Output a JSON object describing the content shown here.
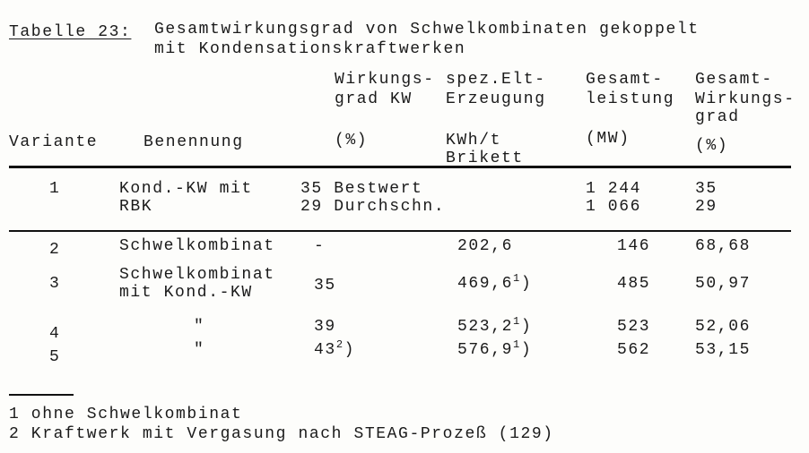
{
  "title": {
    "label": "Tabelle 23:",
    "line1": "Gesamtwirkungsgrad von Schwelkombinaten gekoppelt",
    "line2": "mit Kondensationskraftwerken"
  },
  "headers": {
    "variante": "Variante",
    "benennung": "Benennung",
    "wirkungsgrad_kw": [
      "Wirkungs-",
      "grad KW",
      "(%)"
    ],
    "spez_elt": [
      "spez.Elt-",
      "Erzeugung",
      "KWh/t",
      "Brikett"
    ],
    "gesamtleistung": [
      "Gesamt-",
      "leistung",
      "(MW)"
    ],
    "gesamtwirkungsgrad": [
      "Gesamt-",
      "Wirkungs-",
      "grad",
      "(%)"
    ]
  },
  "row1": {
    "variante": "1",
    "benennung": [
      "Kond.-KW mit",
      "RBK"
    ],
    "wirkungsgrad": [
      "35 Bestwert",
      "29 Durchschn."
    ],
    "leistung": [
      "1 244",
      "1 066"
    ],
    "gesamt": [
      "35",
      "29"
    ]
  },
  "rows": [
    {
      "variante": "2",
      "benennung": [
        "Schwelkombinat"
      ],
      "wirkungsgrad": "-",
      "wirkungsgrad_note": "",
      "elt": "202,6",
      "elt_note": "",
      "leistung": "146",
      "gesamt": "68,68"
    },
    {
      "variante": "3",
      "benennung": [
        "Schwelkombinat",
        "mit Kond.-KW"
      ],
      "wirkungsgrad": "35",
      "wirkungsgrad_note": "",
      "elt": "469,6",
      "elt_note": "1",
      "leistung": "485",
      "gesamt": "50,97"
    },
    {
      "variante": "4",
      "benennung": [
        "\""
      ],
      "wirkungsgrad": "39",
      "wirkungsgrad_note": "",
      "elt": "523,2",
      "elt_note": "1",
      "leistung": "523",
      "gesamt": "52,06"
    },
    {
      "variante": "5",
      "benennung": [
        "\""
      ],
      "wirkungsgrad": "43",
      "wirkungsgrad_note": "2",
      "elt": "576,9",
      "elt_note": "1",
      "leistung": "562",
      "gesamt": "53,15"
    }
  ],
  "footnotes": [
    "1 ohne Schwelkombinat",
    "2 Kraftwerk mit Vergasung nach STEAG-Prozeß (129)"
  ]
}
